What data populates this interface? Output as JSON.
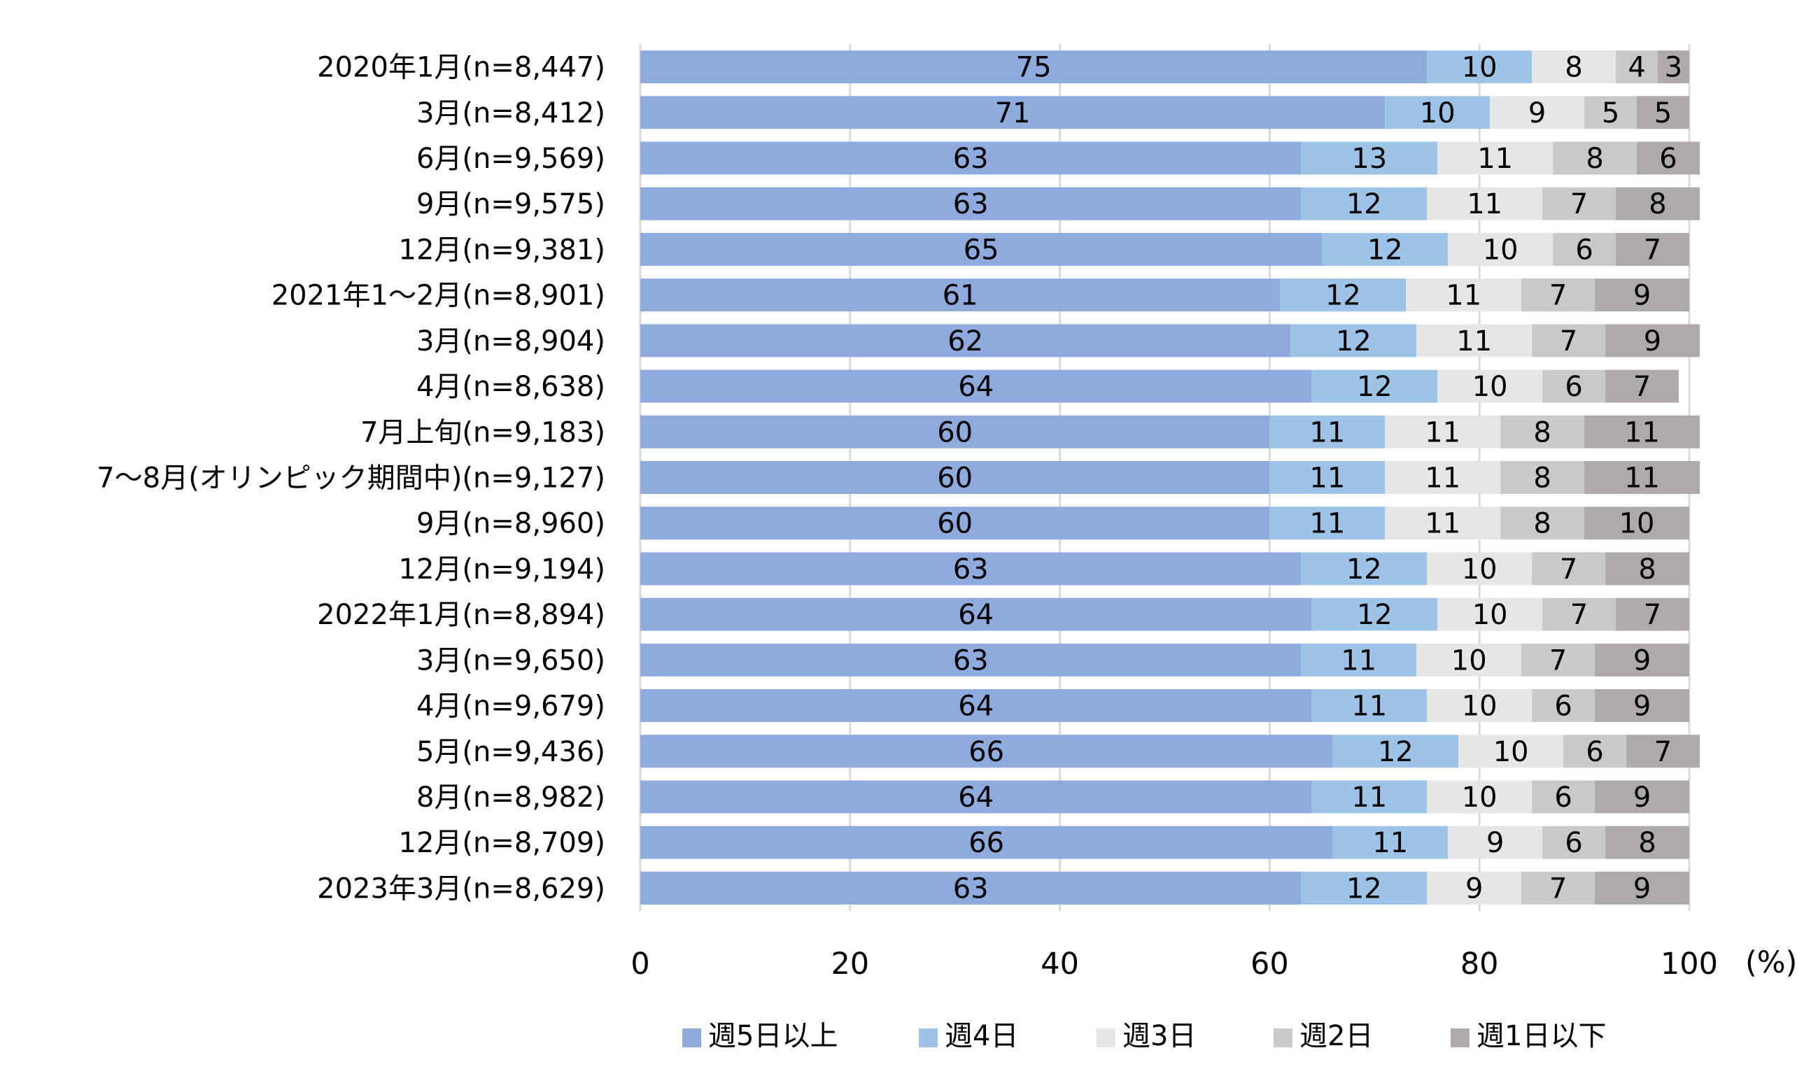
{
  "chart_data": {
    "type": "bar",
    "orientation": "horizontal",
    "stacked": true,
    "title": "",
    "xlabel": "",
    "ylabel": "",
    "unit_label": "(%)",
    "xlim": [
      0,
      100
    ],
    "xticks": [
      0,
      20,
      40,
      60,
      80,
      100
    ],
    "grid": true,
    "legend_position": "bottom",
    "categories": [
      "2020年1月(n=8,447)",
      "3月(n=8,412)",
      "6月(n=9,569)",
      "9月(n=9,575)",
      "12月(n=9,381)",
      "2021年1～2月(n=8,901)",
      "3月(n=8,904)",
      "4月(n=8,638)",
      "7月上旬(n=9,183)",
      "7～8月(オリンピック期間中)(n=9,127)",
      "9月(n=8,960)",
      "12月(n=9,194)",
      "2022年1月(n=8,894)",
      "3月(n=9,650)",
      "4月(n=9,679)",
      "5月(n=9,436)",
      "8月(n=8,982)",
      "12月(n=8,709)",
      "2023年3月(n=8,629)"
    ],
    "series": [
      {
        "name": "週5日以上",
        "color": "#8faadc",
        "values": [
          75,
          71,
          63,
          63,
          65,
          61,
          62,
          64,
          60,
          60,
          60,
          63,
          64,
          63,
          64,
          66,
          64,
          66,
          63
        ]
      },
      {
        "name": "週4日",
        "color": "#9dc3e6",
        "values": [
          10,
          10,
          13,
          12,
          12,
          12,
          12,
          12,
          11,
          11,
          11,
          12,
          12,
          11,
          11,
          12,
          11,
          11,
          12
        ]
      },
      {
        "name": "週3日",
        "color": "#e7e6e6",
        "values": [
          8,
          9,
          11,
          11,
          10,
          11,
          11,
          10,
          11,
          11,
          11,
          10,
          10,
          10,
          10,
          10,
          10,
          9,
          9
        ]
      },
      {
        "name": "週2日",
        "color": "#c9c9c9",
        "values": [
          4,
          5,
          8,
          7,
          6,
          7,
          7,
          6,
          8,
          8,
          8,
          7,
          7,
          7,
          6,
          6,
          6,
          6,
          7
        ]
      },
      {
        "name": "週1日以下",
        "color": "#aeaaaa",
        "values": [
          3,
          5,
          6,
          8,
          7,
          9,
          9,
          7,
          11,
          11,
          10,
          8,
          7,
          9,
          9,
          7,
          9,
          8,
          9
        ]
      }
    ]
  }
}
